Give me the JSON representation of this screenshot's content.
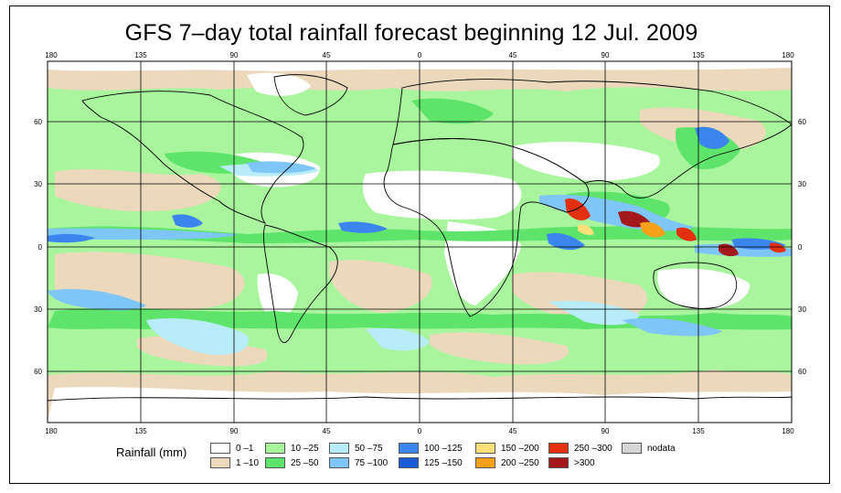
{
  "title": "GFS 7–day total rainfall forecast beginning 12 Jul. 2009",
  "axes": {
    "lon_ticks": [
      "180",
      "135",
      "90",
      "45",
      "0",
      "45",
      "90",
      "135",
      "180"
    ],
    "lat_ticks": [
      "60",
      "30",
      "0",
      "30",
      "60"
    ]
  },
  "legend": {
    "title": "Rainfall (mm)",
    "items": [
      {
        "label": "0 –1",
        "color": "#ffffff"
      },
      {
        "label": "1 –10",
        "color": "#ecd9bc"
      },
      {
        "label": "10 –25",
        "color": "#a9f59e"
      },
      {
        "label": "25 –50",
        "color": "#5ee46a"
      },
      {
        "label": "50 –75",
        "color": "#b8ecf8"
      },
      {
        "label": "75 –100",
        "color": "#7ec5f8"
      },
      {
        "label": "100 –125",
        "color": "#3b86ee"
      },
      {
        "label": "125 –150",
        "color": "#1a5ad6"
      },
      {
        "label": "150 –200",
        "color": "#fde07a"
      },
      {
        "label": "200 –250",
        "color": "#f8a018"
      },
      {
        "label": "250 –300",
        "color": "#e5300f"
      },
      {
        "label": ">300",
        "color": "#a3181a"
      },
      {
        "label": "nodata",
        "color": "#d6d6d6"
      }
    ]
  }
}
